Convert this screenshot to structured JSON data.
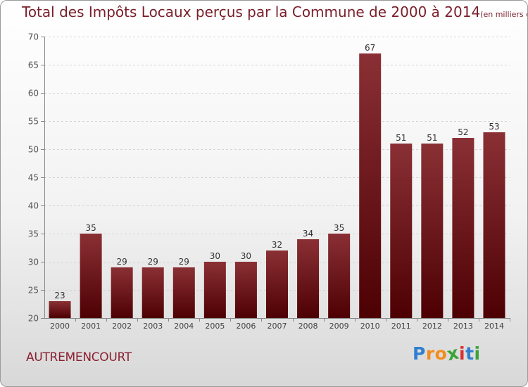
{
  "title": "Total des Impôts Locaux perçus par la Commune de 2000 à 2014",
  "unit": "(en milliers d'€)",
  "commune": "AUTREMENCOURT",
  "logo": {
    "letters": [
      "P",
      "r",
      "o",
      "x",
      "i",
      "t",
      "i"
    ],
    "colors": [
      "#2f7fd0",
      "#f28c1e",
      "#f28c1e",
      "#3aa33a",
      "#d8302f",
      "#2f7fd0",
      "#3aa33a"
    ]
  },
  "colors": {
    "bar_top": "#8a3035",
    "bar_bottom": "#4d0003",
    "title": "#7a1f2a"
  },
  "chart_data": {
    "type": "bar",
    "title": "Total des Impôts Locaux perçus par la Commune de 2000 à 2014",
    "xlabel": "",
    "ylabel": "",
    "categories": [
      "2000",
      "2001",
      "2002",
      "2003",
      "2004",
      "2005",
      "2006",
      "2007",
      "2008",
      "2009",
      "2010",
      "2011",
      "2012",
      "2013",
      "2014"
    ],
    "values": [
      23,
      35,
      29,
      29,
      29,
      30,
      30,
      32,
      34,
      35,
      67,
      51,
      51,
      52,
      53
    ],
    "ylim": [
      20,
      70
    ],
    "yticks": [
      20,
      25,
      30,
      35,
      40,
      45,
      50,
      55,
      60,
      65,
      70
    ],
    "grid": "y-dashed",
    "legend": "none"
  }
}
